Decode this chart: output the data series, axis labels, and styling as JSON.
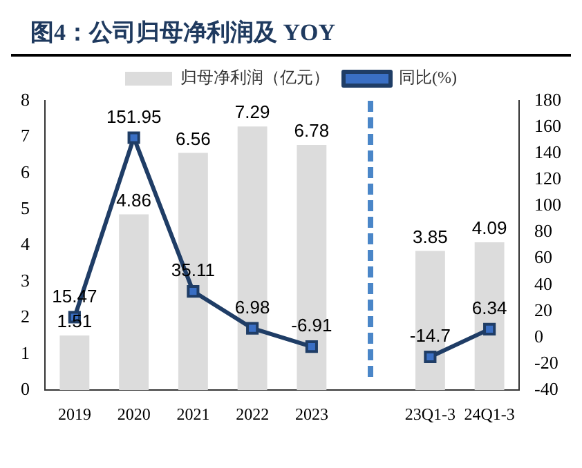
{
  "chart_data": {
    "type": "bar",
    "title": "图4：公司归母净利润及 YOY",
    "categories": [
      "2019",
      "2020",
      "2021",
      "2022",
      "2023",
      null,
      "23Q1-3",
      "24Q1-3"
    ],
    "series": [
      {
        "name": "归母净利润（亿元）",
        "color": "#dcdcdc",
        "values": [
          1.51,
          4.86,
          6.56,
          7.29,
          6.78,
          null,
          3.85,
          4.09
        ]
      },
      {
        "name": "同比(%)",
        "type": "line",
        "axis": "y2",
        "color": "#1f3d66",
        "marker": "square",
        "values": [
          15.47,
          151.95,
          35.11,
          6.98,
          -6.91,
          null,
          -14.7,
          6.34
        ]
      }
    ],
    "ylim": [
      0,
      8
    ],
    "yticks": [
      0,
      1,
      2,
      3,
      4,
      5,
      6,
      7,
      8
    ],
    "y2lim": [
      -40,
      180
    ],
    "y2ticks": [
      -40,
      -20,
      0,
      20,
      40,
      60,
      80,
      100,
      120,
      140,
      160,
      180
    ],
    "data_labels": true,
    "grid": false,
    "legend": "top"
  }
}
